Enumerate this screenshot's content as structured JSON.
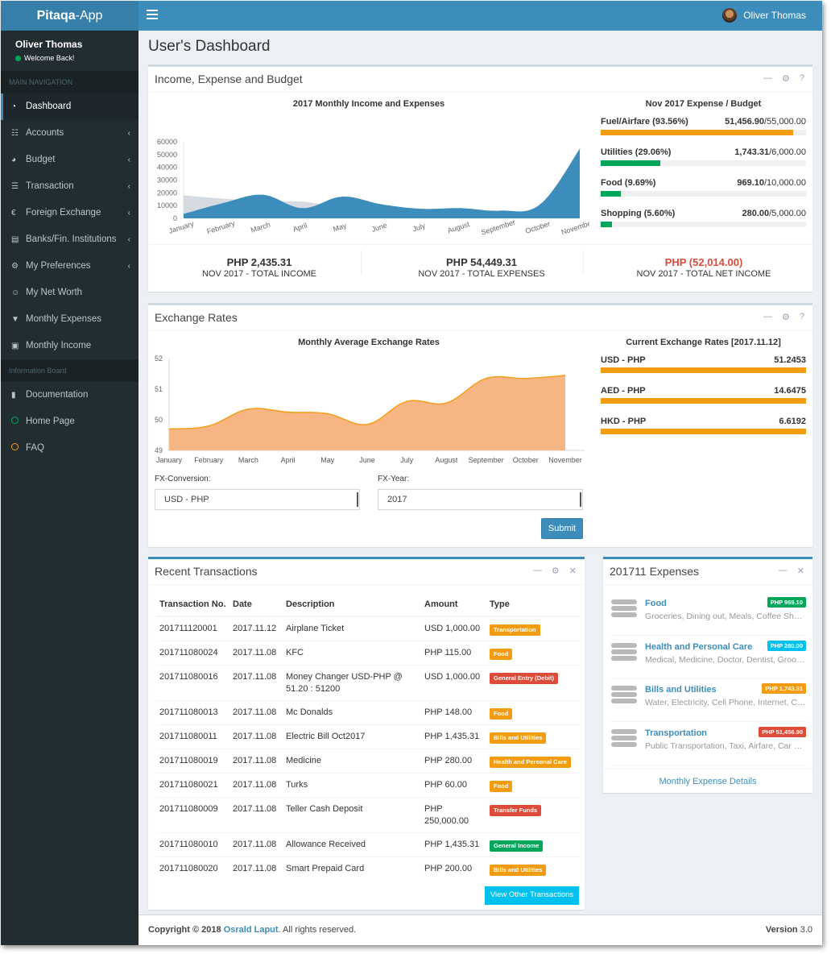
{
  "app": {
    "brand_bold": "Pitaqa",
    "brand_rest": "-App"
  },
  "topbar": {
    "user_name": "Oliver Thomas"
  },
  "sidebar": {
    "user_name": "Oliver Thomas",
    "status": "Welcome Back!",
    "main_header": "MAIN NAVIGATION",
    "items": [
      {
        "label": "Dashboard",
        "icon": "dashboard-icon",
        "active": true,
        "has_children": false
      },
      {
        "label": "Accounts",
        "icon": "grid-icon",
        "has_children": true
      },
      {
        "label": "Budget",
        "icon": "pie-chart-icon",
        "has_children": true
      },
      {
        "label": "Transaction",
        "icon": "list-icon",
        "has_children": true
      },
      {
        "label": "Foreign Exchange",
        "icon": "euro-icon",
        "has_children": true
      },
      {
        "label": "Banks/Fin. Institutions",
        "icon": "building-icon",
        "has_children": true
      },
      {
        "label": "My Preferences",
        "icon": "cogs-icon",
        "has_children": true
      },
      {
        "label": "My Net Worth",
        "icon": "user-icon",
        "has_children": false
      },
      {
        "label": "Monthly Expenses",
        "icon": "cart-icon",
        "has_children": false
      },
      {
        "label": "Monthly Income",
        "icon": "money-icon",
        "has_children": false
      }
    ],
    "info_header": "Information Board",
    "info_items": [
      {
        "label": "Documentation",
        "icon": "book-icon"
      },
      {
        "label": "Home Page",
        "icon": "circle-green-icon"
      },
      {
        "label": "FAQ",
        "icon": "circle-yellow-icon"
      }
    ]
  },
  "page": {
    "title": "User's Dashboard"
  },
  "box1": {
    "title": "Income, Expense and Budget",
    "chart_title": "2017 Monthly Income and Expenses",
    "budget_title": "Nov 2017 Expense / Budget",
    "budgets": [
      {
        "label": "Fuel/Airfare (93.56%)",
        "value": "51,456.90",
        "budget": "/55,000.00",
        "fraction": 0.9356,
        "color": "#f39c12"
      },
      {
        "label": "Utilities (29.06%)",
        "value": "1,743.31",
        "budget": "/6,000.00",
        "fraction": 0.2906,
        "color": "#00a65a"
      },
      {
        "label": "Food (9.69%)",
        "value": "969.10",
        "budget": "/10,000.00",
        "fraction": 0.0969,
        "color": "#00a65a"
      },
      {
        "label": "Shopping (5.60%)",
        "value": "280.00",
        "budget": "/5,000.00",
        "fraction": 0.056,
        "color": "#00a65a"
      }
    ],
    "stats": [
      {
        "value": "PHP 2,435.31",
        "label": "NOV 2017 - TOTAL INCOME",
        "color": "#333333"
      },
      {
        "value": "PHP 54,449.31",
        "label": "NOV 2017 - TOTAL EXPENSES",
        "color": "#333333"
      },
      {
        "value": "PHP (52,014.00)",
        "label": "NOV 2017 - TOTAL NET INCOME",
        "color": "#dd4b39"
      }
    ]
  },
  "box2": {
    "title": "Exchange Rates",
    "chart_title": "Monthly Average Exchange Rates",
    "rates_title": "Current Exchange Rates [2017.11.12]",
    "rates": [
      {
        "pair": "USD - PHP",
        "rate": "51.2453"
      },
      {
        "pair": "AED - PHP",
        "rate": "14.6475"
      },
      {
        "pair": "HKD - PHP",
        "rate": "6.6192"
      }
    ],
    "fx_conversion_label": "FX-Conversion:",
    "fx_conversion_value": "USD - PHP",
    "fx_year_label": "FX-Year:",
    "fx_year_value": "2017",
    "submit_label": "Submit"
  },
  "chart_data": [
    {
      "type": "area",
      "title": "2017 Monthly Income and Expenses",
      "categories": [
        "January",
        "February",
        "March",
        "April",
        "May",
        "June",
        "July",
        "August",
        "September",
        "October",
        "November"
      ],
      "ylim": [
        0,
        60000
      ],
      "yticks": [
        "0",
        "10000",
        "20000",
        "30000",
        "40000",
        "50000",
        "60000"
      ],
      "series": [
        {
          "color": "#d2d6de",
          "values": [
            18000,
            15500,
            13500,
            13000,
            9000,
            7500,
            6500,
            6500,
            5500,
            5000,
            2400
          ]
        },
        {
          "color": "#3c8dbc",
          "values": [
            3500,
            12000,
            18500,
            8000,
            17000,
            11000,
            7500,
            8000,
            6000,
            11000,
            54500
          ]
        }
      ]
    },
    {
      "type": "area",
      "title": "Monthly Average Exchange Rates",
      "categories": [
        "January",
        "February",
        "March",
        "April",
        "May",
        "June",
        "July",
        "August",
        "September",
        "October",
        "November"
      ],
      "ylim": [
        49,
        52
      ],
      "yticks": [
        "49",
        "50",
        "51",
        "52"
      ],
      "series": [
        {
          "color": "#f39c12",
          "values": [
            49.7,
            49.8,
            50.35,
            50.25,
            50.2,
            49.85,
            50.6,
            50.55,
            51.35,
            51.35,
            51.45
          ]
        }
      ]
    }
  ],
  "transactions": {
    "title": "Recent Transactions",
    "headers": {
      "no": "Transaction No.",
      "date": "Date",
      "desc": "Description",
      "amount": "Amount",
      "type": "Type"
    },
    "rows": [
      {
        "no": "201711120001",
        "date": "2017.11.12",
        "desc": "Airplane Ticket",
        "amount": "USD 1,000.00",
        "type": "Transportation",
        "color": "#f39c12"
      },
      {
        "no": "201711080024",
        "date": "2017.11.08",
        "desc": "KFC",
        "amount": "PHP 115.00",
        "type": "Food",
        "color": "#f39c12"
      },
      {
        "no": "201711080016",
        "date": "2017.11.08",
        "desc": "Money Changer USD-PHP @ 51.20 : 51200",
        "amount": "USD 1,000.00",
        "type": "General Entry (Debit)",
        "color": "#dd4b39"
      },
      {
        "no": "201711080013",
        "date": "2017.11.08",
        "desc": "Mc Donalds",
        "amount": "PHP 148.00",
        "type": "Food",
        "color": "#f39c12"
      },
      {
        "no": "201711080011",
        "date": "2017.11.08",
        "desc": "Electric Bill Oct2017",
        "amount": "PHP 1,435.31",
        "type": "Bills and Utilities",
        "color": "#f39c12"
      },
      {
        "no": "201711080019",
        "date": "2017.11.08",
        "desc": "Medicine",
        "amount": "PHP 280.00",
        "type": "Health and Personal Care",
        "color": "#f39c12"
      },
      {
        "no": "201711080021",
        "date": "2017.11.08",
        "desc": "Turks",
        "amount": "PHP 60.00",
        "type": "Food",
        "color": "#f39c12"
      },
      {
        "no": "201711080009",
        "date": "2017.11.08",
        "desc": "Teller Cash Deposit",
        "amount": "PHP 250,000.00",
        "type": "Transfer Funds",
        "color": "#dd4b39"
      },
      {
        "no": "201711080010",
        "date": "2017.11.08",
        "desc": "Allowance Received",
        "amount": "PHP 1,435.31",
        "type": "General Income",
        "color": "#00a65a"
      },
      {
        "no": "201711080020",
        "date": "2017.11.08",
        "desc": "Smart Prepaid Card",
        "amount": "PHP 200.00",
        "type": "Bills and Utilities",
        "color": "#f39c12"
      }
    ],
    "view_other_label": "View Other Transactions"
  },
  "expenses": {
    "title": "201711 Expenses",
    "items": [
      {
        "name": "Food",
        "badge": "PHP 969.10",
        "badge_color": "#00a65a",
        "desc": "Groceries, Dining out, Meals, Coffee Shops"
      },
      {
        "name": "Health and Personal Care",
        "badge": "PHP 280.00",
        "badge_color": "#00c0ef",
        "desc": "Medical, Medicine, Doctor, Dentist, Grooming"
      },
      {
        "name": "Bills and Utilities",
        "badge": "PHP 1,743.31",
        "badge_color": "#f39c12",
        "desc": "Water, Electricity, Cell Phone, Internet, Cable"
      },
      {
        "name": "Transportation",
        "badge": "PHP 51,456.90",
        "badge_color": "#dd4b39",
        "desc": "Public Transportation, Taxi, Airfare, Car Rental"
      }
    ],
    "details_link": "Monthly Expense Details"
  },
  "footer": {
    "copyright": "Copyright © 2018",
    "author": "Osrald Laput",
    "rights": ". All rights reserved.",
    "version_label": "Version",
    "version": "3.0"
  }
}
